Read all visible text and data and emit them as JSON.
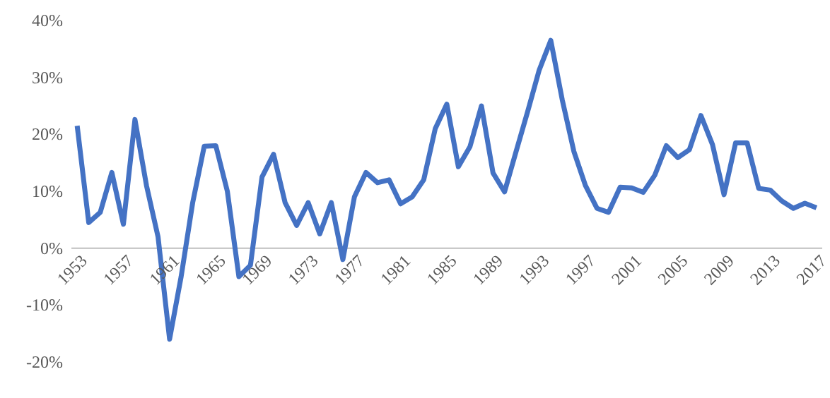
{
  "chart_data": {
    "type": "line",
    "x": [
      1953,
      1954,
      1955,
      1956,
      1957,
      1958,
      1959,
      1960,
      1961,
      1962,
      1963,
      1964,
      1965,
      1966,
      1967,
      1968,
      1969,
      1970,
      1971,
      1972,
      1973,
      1974,
      1975,
      1976,
      1977,
      1978,
      1979,
      1980,
      1981,
      1982,
      1983,
      1984,
      1985,
      1986,
      1987,
      1988,
      1989,
      1990,
      1991,
      1992,
      1993,
      1994,
      1995,
      1996,
      1997,
      1998,
      1999,
      2000,
      2001,
      2002,
      2003,
      2004,
      2005,
      2006,
      2007,
      2008,
      2009,
      2010,
      2011,
      2012,
      2013,
      2014,
      2015,
      2016,
      2017
    ],
    "series": [
      {
        "color": "#4472c4",
        "values": [
          21.5,
          4.5,
          6.3,
          13.3,
          4.2,
          22.6,
          11,
          2,
          -16,
          -5,
          8,
          17.9,
          18,
          10,
          -5,
          -3,
          12.5,
          16.5,
          8,
          4,
          8,
          2.5,
          8,
          -2,
          9,
          13.3,
          11.5,
          12,
          7.8,
          9,
          12,
          21,
          25.3,
          14.3,
          17.8,
          25,
          13.2,
          9.9,
          17,
          24,
          31.3,
          36.5,
          26,
          17,
          11,
          7,
          6.3,
          10.7,
          10.6,
          9.8,
          12.8,
          18,
          15.9,
          17.3,
          23.3,
          18.2,
          9.4,
          18.5,
          18.5,
          10.5,
          10.2,
          8.3,
          7,
          7.9,
          7.1
        ]
      }
    ],
    "xlim": [
      1952.5,
      2017.5
    ],
    "xticks": [
      1953,
      1957,
      1961,
      1965,
      1969,
      1973,
      1977,
      1981,
      1985,
      1989,
      1993,
      1997,
      2001,
      2005,
      2009,
      2013,
      2017
    ],
    "ylim": [
      -20,
      40
    ],
    "yticks": [
      {
        "value": -20,
        "label": "-20%"
      },
      {
        "value": -10,
        "label": "-10%"
      },
      {
        "value": 0,
        "label": "0%"
      },
      {
        "value": 10,
        "label": "10%"
      },
      {
        "value": 20,
        "label": "20%"
      },
      {
        "value": 30,
        "label": "30%"
      },
      {
        "value": 40,
        "label": "40%"
      }
    ],
    "grid": false,
    "marker": "none",
    "line_style": "solid"
  }
}
